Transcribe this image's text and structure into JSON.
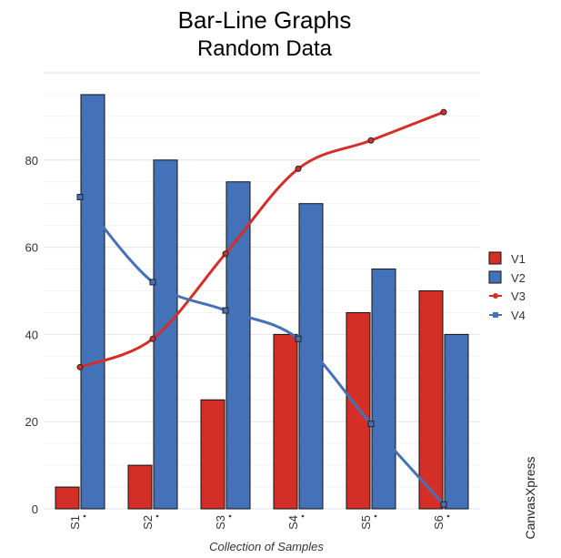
{
  "chart_data": {
    "type": "bar",
    "title": "Bar-Line Graphs",
    "subtitle": "Random Data",
    "xlabel": "Collection of Samples",
    "ylabel": "",
    "categories": [
      "S1",
      "S2",
      "S3",
      "S4",
      "S5",
      "S6"
    ],
    "ylim": [
      0,
      100
    ],
    "yticks": [
      0,
      20,
      40,
      60,
      80
    ],
    "grid": true,
    "legend_position": "right",
    "bar_series": [
      {
        "name": "V1",
        "values": [
          5,
          10,
          25,
          40,
          45,
          50
        ],
        "color": "#d42f26"
      },
      {
        "name": "V2",
        "values": [
          95,
          80,
          75,
          70,
          55,
          40
        ],
        "color": "#4472b8"
      }
    ],
    "line_series": [
      {
        "name": "V3",
        "values": [
          32.5,
          39,
          58.5,
          78,
          84.5,
          91
        ],
        "color": "#d42f26",
        "marker": "circle"
      },
      {
        "name": "V4",
        "values": [
          71.5,
          52,
          45.5,
          39,
          19.5,
          1
        ],
        "color": "#4472b8",
        "marker": "square"
      }
    ]
  },
  "watermark": "CanvasXpress"
}
